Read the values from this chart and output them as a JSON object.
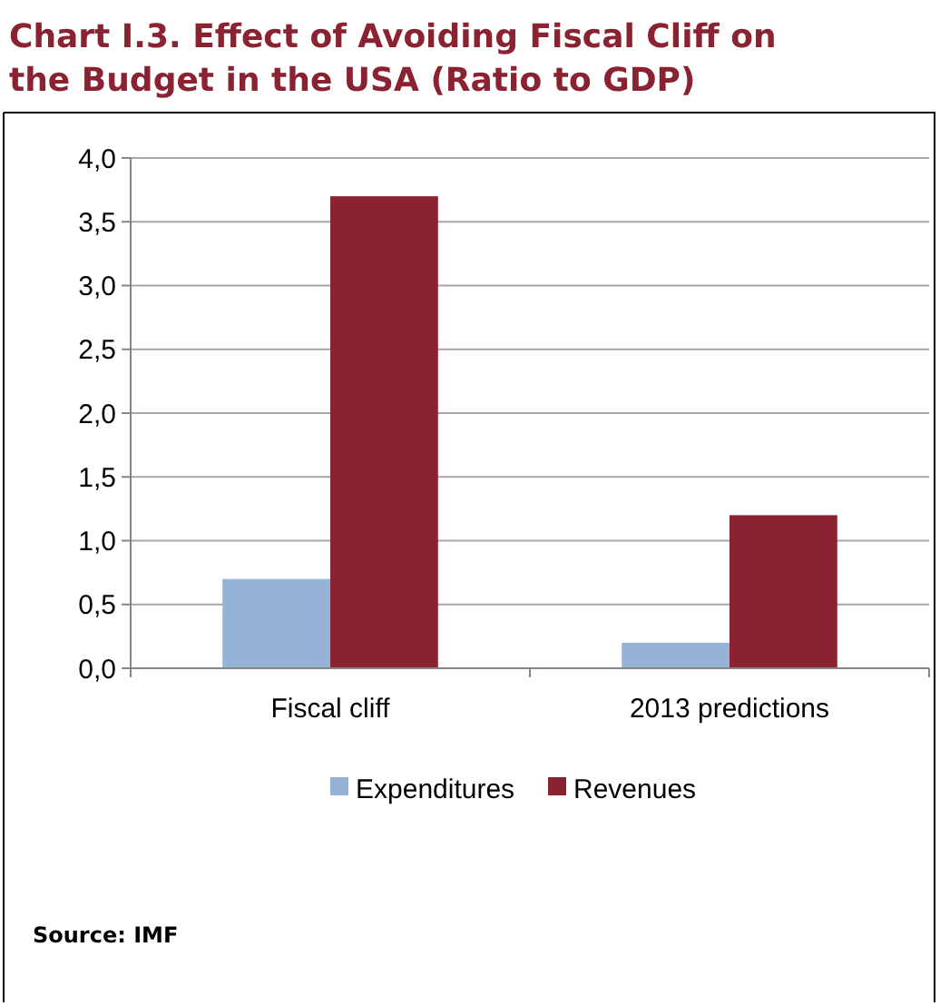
{
  "chart_data": {
    "type": "bar",
    "title": "Chart I.3. Effect of Avoiding Fiscal Cliff on the Budget in the USA (Ratio to GDP)",
    "categories": [
      "Fiscal cliff",
      "2013 predictions"
    ],
    "series": [
      {
        "name": "Expenditures",
        "color": "#95b3d7",
        "values": [
          0.7,
          0.2
        ]
      },
      {
        "name": "Revenues",
        "color": "#8b2232",
        "values": [
          3.7,
          1.2
        ]
      }
    ],
    "ylim": [
      0,
      4
    ],
    "yticks": [
      {
        "value": 0,
        "label": "0,0"
      },
      {
        "value": 0.5,
        "label": "0,5"
      },
      {
        "value": 1,
        "label": "1,0"
      },
      {
        "value": 1.5,
        "label": "1,5"
      },
      {
        "value": 2,
        "label": "2,0"
      },
      {
        "value": 2.5,
        "label": "2,5"
      },
      {
        "value": 3,
        "label": "3,0"
      },
      {
        "value": 3.5,
        "label": "3,5"
      },
      {
        "value": 4,
        "label": "4,0"
      }
    ],
    "grid": "y",
    "legend": "bottom",
    "annotations": [
      "Source: IMF"
    ]
  }
}
